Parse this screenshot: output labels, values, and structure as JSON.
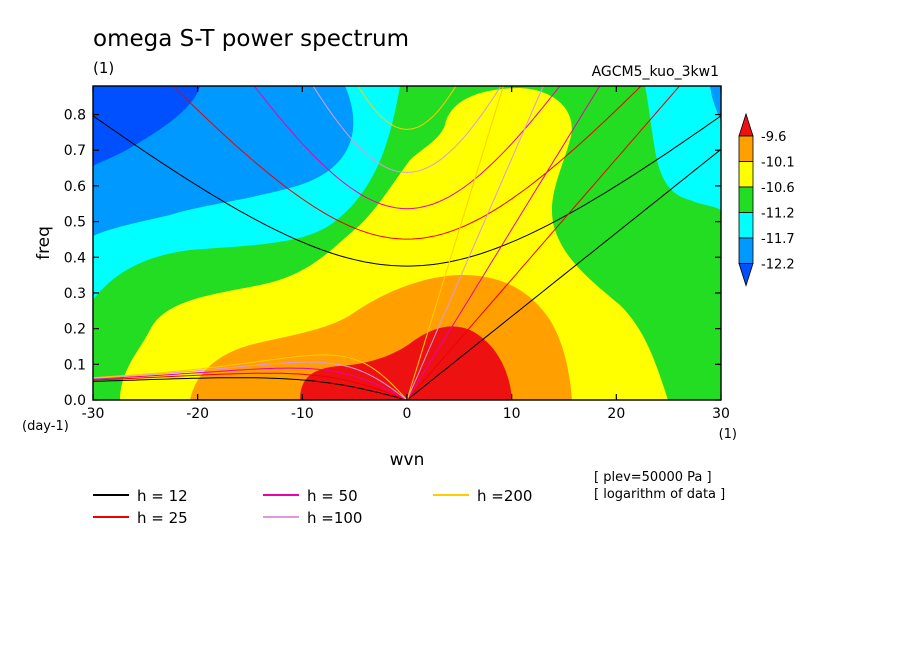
{
  "header": {
    "title": "omega S-T power spectrum",
    "unit_left": "(1)",
    "run_name": "AGCM5_kuo_3kw1"
  },
  "notes": {
    "plev": "[ plev=50000 Pa ]",
    "log": "[ logarithm of data ]"
  },
  "chart_data": {
    "type": "heatmap",
    "title": "omega S-T power spectrum",
    "xlabel": "wvn",
    "ylabel": "freq",
    "x_unit": "(1)",
    "y_unit": "(day-1)",
    "xlim": [
      -30,
      30
    ],
    "ylim": [
      0,
      0.88
    ],
    "xticks": [
      -30,
      -20,
      -10,
      0,
      10,
      20,
      30
    ],
    "yticks": [
      0.0,
      0.1,
      0.2,
      0.3,
      0.4,
      0.5,
      0.6,
      0.7,
      0.8
    ],
    "xtick_labels": [
      "-30",
      "-20",
      "-10",
      "0",
      "10",
      "20",
      "30"
    ],
    "ytick_labels": [
      "0.0",
      "0.1",
      "0.2",
      "0.3",
      "0.4",
      "0.5",
      "0.6",
      "0.7",
      "0.8"
    ],
    "colorbar": {
      "levels": [
        "-9.6",
        "-10.1",
        "-10.6",
        "-11.2",
        "-11.7",
        "-12.2"
      ],
      "colors": [
        "#ee1111",
        "#ff9f00",
        "#ffff00",
        "#22dd22",
        "#00ffff",
        "#0099ff",
        "#0050ff"
      ]
    },
    "dispersion_curves": [
      {
        "label": "h = 12",
        "h": 12,
        "color": "#000000"
      },
      {
        "label": "h = 25",
        "h": 25,
        "color": "#ee0000"
      },
      {
        "label": "h = 50",
        "h": 50,
        "color": "#ee00aa"
      },
      {
        "label": "h =100",
        "h": 100,
        "color": "#dd99dd"
      },
      {
        "label": "h =200",
        "h": 200,
        "color": "#ffcc00"
      }
    ]
  }
}
